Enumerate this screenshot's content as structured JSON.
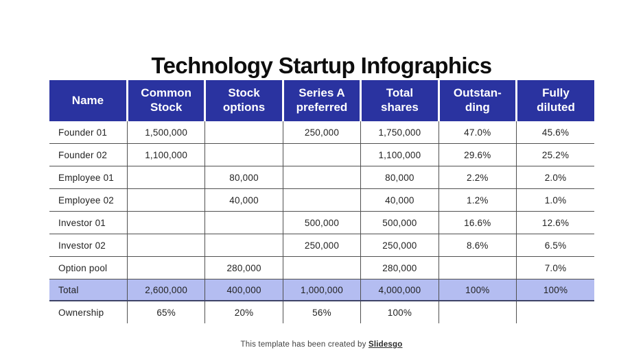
{
  "title": "Technology Startup Infographics",
  "colors": {
    "header_blue": "#2a33a0",
    "total_row_lavender": "#b4bdf1",
    "grid_line": "#4f4f4f",
    "total_row_border": "#3e4366",
    "background": "#ffffff"
  },
  "table": {
    "columns": [
      "Name",
      "Common\nStock",
      "Stock\noptions",
      "Series A\npreferred",
      "Total\nshares",
      "Outstan-\nding",
      "Fully\ndiluted"
    ],
    "rows": [
      {
        "style": "data",
        "cells": [
          "Founder 01",
          "1,500,000",
          "",
          "250,000",
          "1,750,000",
          "47.0%",
          "45.6%"
        ]
      },
      {
        "style": "data",
        "cells": [
          "Founder 02",
          "1,100,000",
          "",
          "",
          "1,100,000",
          "29.6%",
          "25.2%"
        ]
      },
      {
        "style": "data",
        "cells": [
          "Employee 01",
          "",
          "80,000",
          "",
          "80,000",
          "2.2%",
          "2.0%"
        ]
      },
      {
        "style": "data",
        "cells": [
          "Employee 02",
          "",
          "40,000",
          "",
          "40,000",
          "1.2%",
          "1.0%"
        ]
      },
      {
        "style": "data",
        "cells": [
          "Investor 01",
          "",
          "",
          "500,000",
          "500,000",
          "16.6%",
          "12.6%"
        ]
      },
      {
        "style": "data",
        "cells": [
          "Investor 02",
          "",
          "",
          "250,000",
          "250,000",
          "8.6%",
          "6.5%"
        ]
      },
      {
        "style": "data",
        "cells": [
          "Option pool",
          "",
          "280,000",
          "",
          "280,000",
          "",
          "7.0%"
        ]
      },
      {
        "style": "total",
        "cells": [
          "Total",
          "2,600,000",
          "400,000",
          "1,000,000",
          "4,000,000",
          "100%",
          "100%"
        ]
      },
      {
        "style": "ownership",
        "cells": [
          "Ownership",
          "65%",
          "20%",
          "56%",
          "100%",
          "",
          ""
        ]
      }
    ]
  },
  "footer": {
    "text": "This template has been created by ",
    "brand": "Slidesgo"
  }
}
